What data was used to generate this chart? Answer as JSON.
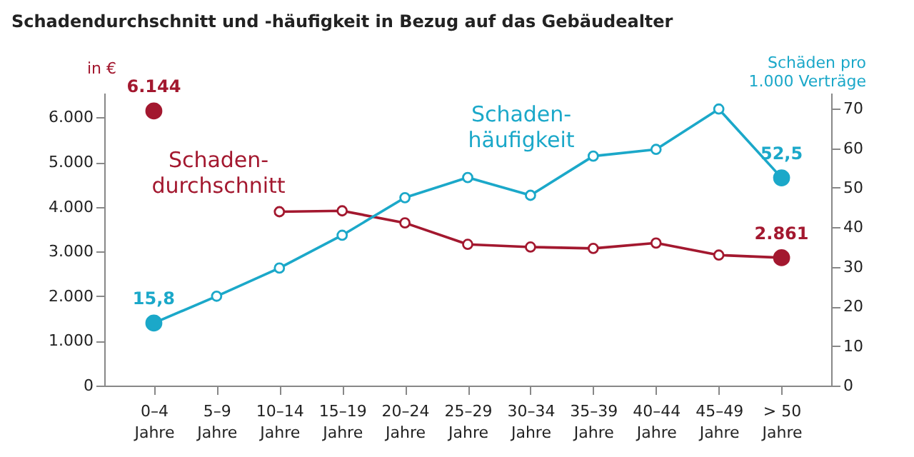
{
  "chart_data": {
    "type": "line",
    "title": "Schadendurchschnitt und -häufigkeit in Bezug auf das Gebäudealter",
    "ylabel": "in €",
    "y2label": "Schäden pro\n1.000 Verträge",
    "categories": [
      "0–4 Jahre",
      "5–9 Jahre",
      "10–14 Jahre",
      "15–19 Jahre",
      "20–24 Jahre",
      "25–29 Jahre",
      "30–34 Jahre",
      "35–39 Jahre",
      "40–44 Jahre",
      "45–49 Jahre",
      "> 50 Jahre"
    ],
    "series": [
      {
        "name": "Schaden-\ndurchschnitt",
        "color": "#a3182f",
        "values": [
          6144,
          null,
          3890,
          3910,
          3640,
          3160,
          3100,
          3070,
          3190,
          2920,
          2861
        ],
        "value_labels": [
          "6.144",
          null,
          null,
          null,
          null,
          null,
          null,
          null,
          null,
          null,
          "2.861"
        ]
      },
      {
        "name": "Schaden-\nhäufigkeit",
        "color": "#1ba8c9",
        "axis": "y2",
        "values": [
          15.8,
          22.6,
          29.7,
          38.0,
          47.5,
          52.6,
          48.1,
          58.0,
          59.7,
          69.9,
          52.5
        ],
        "value_labels": [
          "15,8",
          null,
          null,
          null,
          null,
          null,
          null,
          null,
          null,
          null,
          "52,5"
        ]
      }
    ],
    "ylim": [
      0,
      6550
    ],
    "yticks": [
      {
        "value": 0,
        "label": "0"
      },
      {
        "value": 1000,
        "label": "1.000"
      },
      {
        "value": 2000,
        "label": "2.000"
      },
      {
        "value": 3000,
        "label": "3.000"
      },
      {
        "value": 4000,
        "label": "4.000"
      },
      {
        "value": 5000,
        "label": "5.000"
      },
      {
        "value": 6000,
        "label": "6.000"
      }
    ],
    "y2lim": [
      0,
      74
    ],
    "y2ticks": [
      0,
      10,
      20,
      30,
      40,
      50,
      60,
      70
    ],
    "marker": "circle",
    "grid": false
  }
}
